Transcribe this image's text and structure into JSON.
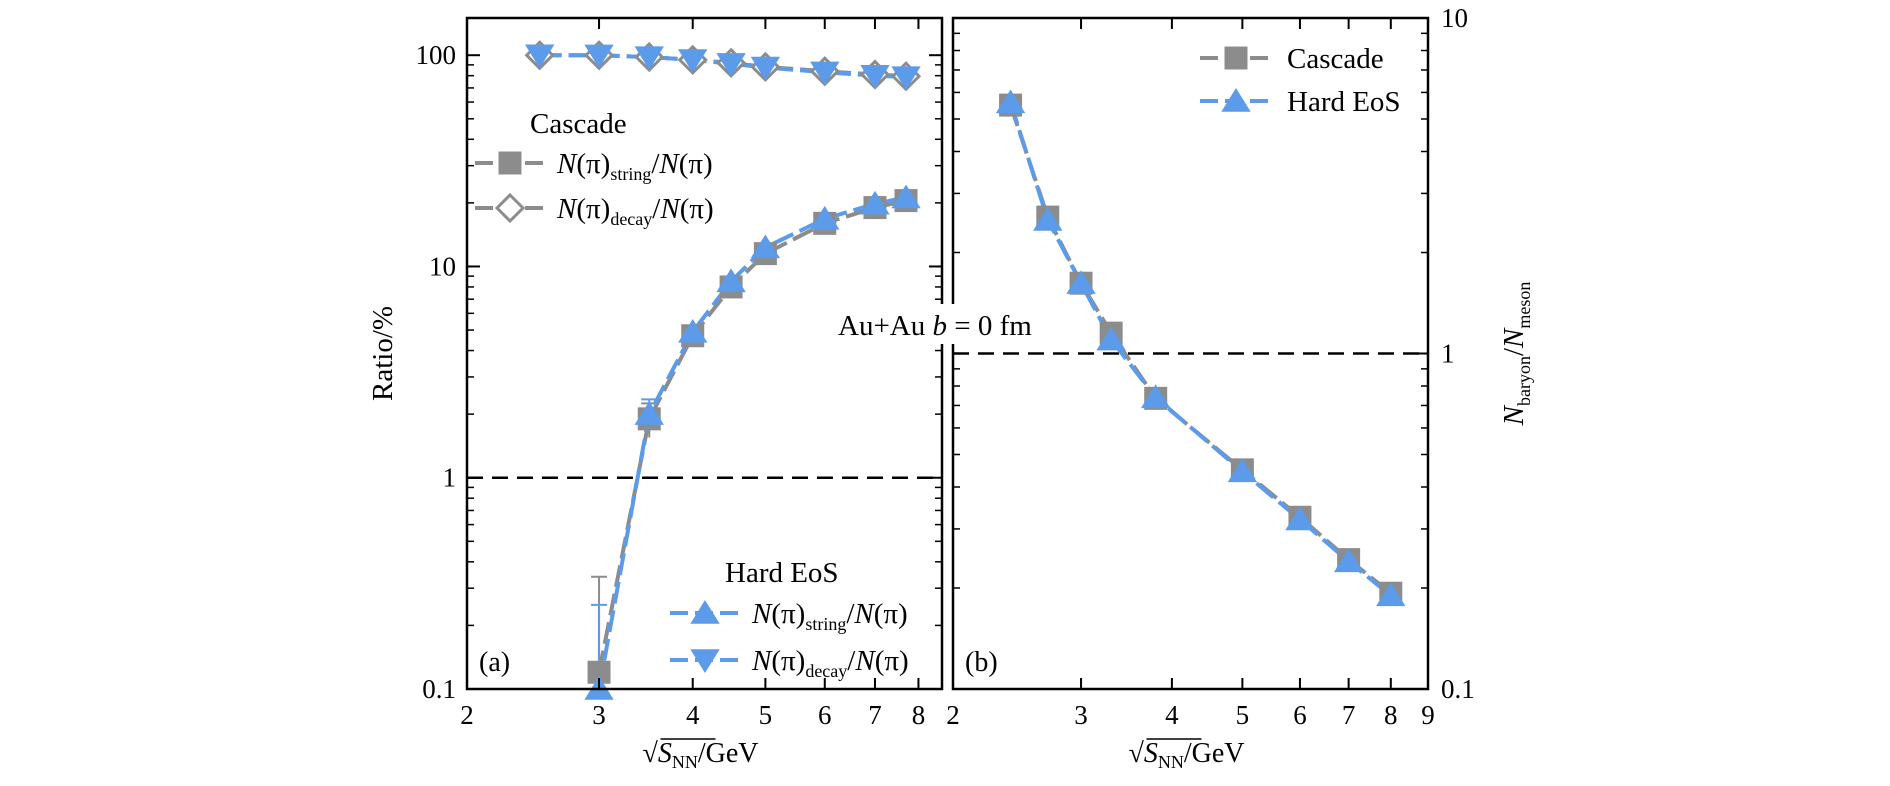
{
  "colors": {
    "cascade": "#8c8c8c",
    "hard": "#5b9bea",
    "axis": "#000000",
    "background": "#ffffff"
  },
  "annotation": {
    "system": "Au+Au ",
    "b_sym": "b",
    "b_rest": " = 0 fm"
  },
  "chart_data": [
    {
      "panel_label": "(a)",
      "type": "line",
      "yscale": "log",
      "xscale": "log",
      "xlim": [
        2,
        8.6
      ],
      "ylim": [
        0.1,
        150
      ],
      "xticks": [
        2,
        3,
        4,
        5,
        6,
        7,
        8
      ],
      "yticks": [
        0.1,
        1,
        10,
        100
      ],
      "ytick_labels": [
        "0.1",
        "1",
        "10",
        "100"
      ],
      "xlabel": {
        "pre": "S",
        "sub": "NN",
        "post": "/GeV"
      },
      "ylabel": "Ratio/%",
      "reference_line": 1,
      "legend_groups": [
        {
          "title": "Cascade",
          "entries": [
            {
              "marker": "square",
              "num": "N(π)",
              "sub": "string",
              "den": "/N(π)"
            },
            {
              "marker": "diamond",
              "num": "N(π)",
              "sub": "decay",
              "den": "/N(π)"
            }
          ]
        },
        {
          "title": "Hard EoS",
          "entries": [
            {
              "marker": "triangle-up",
              "num": "N(π)",
              "sub": "string",
              "den": "/N(π)"
            },
            {
              "marker": "triangle-down",
              "num": "N(π)",
              "sub": "decay",
              "den": "/N(π)"
            }
          ]
        }
      ],
      "series": [
        {
          "name": "Cascade string",
          "style": "cascade",
          "marker": "square",
          "x": [
            3.0,
            3.5,
            4.0,
            4.5,
            5.0,
            6.0,
            7.0,
            7.7
          ],
          "y": [
            0.12,
            1.9,
            4.7,
            8.0,
            11.5,
            16.0,
            19.0,
            20.5
          ],
          "err": [
            0.22,
            0.35,
            0,
            0,
            0,
            0,
            0,
            0
          ]
        },
        {
          "name": "Hard string",
          "style": "hard",
          "marker": "triangle-up",
          "x": [
            3.0,
            3.5,
            4.0,
            4.5,
            5.0,
            6.0,
            7.0,
            7.7
          ],
          "y": [
            0.1,
            2.0,
            4.9,
            8.5,
            12.3,
            16.8,
            19.8,
            21.2
          ],
          "err": [
            0.15,
            0.35,
            0,
            0,
            0,
            0,
            0,
            0
          ]
        },
        {
          "name": "Cascade decay",
          "style": "cascade",
          "marker": "diamond",
          "x": [
            2.5,
            3.0,
            3.5,
            4.0,
            4.5,
            5.0,
            6.0,
            7.0,
            7.7
          ],
          "y": [
            100,
            100,
            98,
            95,
            92,
            88,
            84,
            81,
            79.5
          ]
        },
        {
          "name": "Hard decay",
          "style": "hard",
          "marker": "triangle-down",
          "x": [
            2.5,
            3.0,
            3.5,
            4.0,
            4.5,
            5.0,
            6.0,
            7.0,
            7.7
          ],
          "y": [
            100,
            99.9,
            98,
            95,
            91,
            87.5,
            83,
            80,
            78.8
          ]
        }
      ]
    },
    {
      "panel_label": "(b)",
      "type": "line",
      "yscale": "log",
      "xscale": "log",
      "xlim": [
        2,
        9
      ],
      "ylim": [
        0.1,
        10
      ],
      "xticks": [
        2,
        3,
        4,
        5,
        6,
        7,
        8,
        9
      ],
      "yticks": [
        0.1,
        1,
        10
      ],
      "ytick_labels": [
        "0.1",
        "1",
        "10"
      ],
      "xlabel": {
        "pre": "S",
        "sub": "NN",
        "post": "/GeV"
      },
      "ylabel": {
        "pre": "N",
        "sub1": "baryon",
        "mid": "/N",
        "sub2": "meson"
      },
      "reference_line": 1,
      "legend": [
        {
          "label": "Cascade",
          "style": "cascade",
          "marker": "square"
        },
        {
          "label": "Hard EoS",
          "style": "hard",
          "marker": "triangle-up"
        }
      ],
      "series": [
        {
          "name": "Cascade",
          "style": "cascade",
          "marker": "square",
          "x": [
            2.4,
            2.7,
            3.0,
            3.3,
            3.8,
            5.0,
            6.0,
            7.0,
            8.0
          ],
          "y": [
            5.5,
            2.55,
            1.62,
            1.15,
            0.735,
            0.45,
            0.325,
            0.243,
            0.193
          ]
        },
        {
          "name": "Hard EoS",
          "style": "hard",
          "marker": "triangle-up",
          "x": [
            2.4,
            2.7,
            3.0,
            3.3,
            3.8,
            5.0,
            6.0,
            7.0,
            8.0
          ],
          "y": [
            5.6,
            2.5,
            1.62,
            1.1,
            0.74,
            0.445,
            0.32,
            0.24,
            0.19
          ]
        }
      ]
    }
  ]
}
